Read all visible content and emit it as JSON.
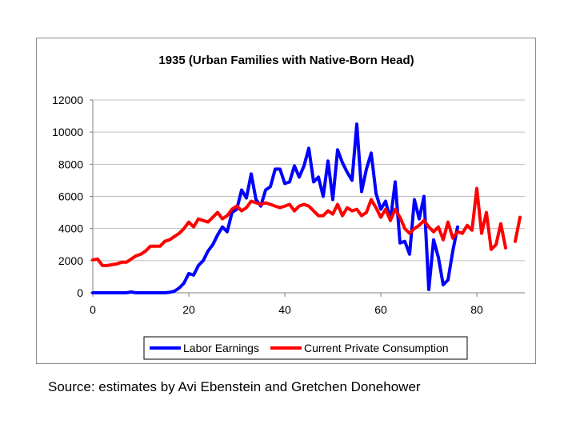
{
  "source_note": "Source: estimates by Avi Ebenstein and Gretchen Donehower",
  "chart_data": {
    "type": "line",
    "title": "1935 (Urban Families with Native-Born Head)",
    "xlabel": "",
    "ylabel": "",
    "xlim": [
      0,
      90
    ],
    "ylim": [
      0,
      12000
    ],
    "xticks": [
      0,
      20,
      40,
      60,
      80
    ],
    "yticks": [
      0,
      2000,
      4000,
      6000,
      8000,
      10000,
      12000
    ],
    "grid": true,
    "legend_position": "bottom",
    "series": [
      {
        "name": "Labor Earnings",
        "color": "#0000ff",
        "x": [
          0,
          1,
          2,
          3,
          4,
          5,
          6,
          7,
          8,
          9,
          10,
          11,
          12,
          13,
          14,
          15,
          16,
          17,
          18,
          19,
          20,
          21,
          22,
          23,
          24,
          25,
          26,
          27,
          28,
          29,
          30,
          31,
          32,
          33,
          34,
          35,
          36,
          37,
          38,
          39,
          40,
          41,
          42,
          43,
          44,
          45,
          46,
          47,
          48,
          49,
          50,
          51,
          52,
          53,
          54,
          55,
          56,
          57,
          58,
          59,
          60,
          61,
          62,
          63,
          64,
          65,
          66,
          67,
          68,
          69,
          70,
          71,
          72,
          73,
          74,
          75,
          76
        ],
        "y": [
          0,
          0,
          0,
          0,
          0,
          0,
          0,
          0,
          50,
          0,
          0,
          0,
          0,
          0,
          0,
          0,
          30,
          100,
          300,
          600,
          1200,
          1100,
          1700,
          2000,
          2600,
          3000,
          3600,
          4100,
          3800,
          5000,
          5200,
          6400,
          5900,
          7400,
          5800,
          5400,
          6400,
          6600,
          7700,
          7700,
          6800,
          6900,
          7900,
          7200,
          7900,
          9000,
          6900,
          7200,
          6000,
          8200,
          5800,
          8900,
          8100,
          7500,
          7000,
          10500,
          6300,
          7700,
          8700,
          6200,
          5200,
          5700,
          4500,
          6900,
          3100,
          3200,
          2400,
          5800,
          4600,
          6000,
          200,
          3300,
          2200,
          500,
          800,
          2600,
          4100
        ]
      },
      {
        "name": "Current Private Consumption",
        "color": "#ff0000",
        "x": [
          0,
          1,
          2,
          3,
          4,
          5,
          6,
          7,
          8,
          9,
          10,
          11,
          12,
          13,
          14,
          15,
          16,
          17,
          18,
          19,
          20,
          21,
          22,
          23,
          24,
          25,
          26,
          27,
          28,
          29,
          30,
          31,
          32,
          33,
          34,
          35,
          36,
          37,
          38,
          39,
          40,
          41,
          42,
          43,
          44,
          45,
          46,
          47,
          48,
          49,
          50,
          51,
          52,
          53,
          54,
          55,
          56,
          57,
          58,
          59,
          60,
          61,
          62,
          63,
          64,
          65,
          66,
          67,
          68,
          69,
          70,
          71,
          72,
          73,
          74,
          75,
          76,
          77,
          78,
          79,
          80,
          81,
          82,
          83,
          84,
          85,
          86,
          87,
          88,
          89
        ],
        "y": [
          2050,
          2100,
          1700,
          1700,
          1750,
          1800,
          1900,
          1900,
          2100,
          2300,
          2400,
          2600,
          2900,
          2900,
          2900,
          3200,
          3300,
          3500,
          3700,
          4000,
          4400,
          4100,
          4600,
          4500,
          4400,
          4700,
          5000,
          4600,
          4800,
          5200,
          5400,
          5100,
          5300,
          5700,
          5600,
          5500,
          5600,
          5500,
          5400,
          5300,
          5400,
          5500,
          5100,
          5400,
          5500,
          5400,
          5100,
          4800,
          4800,
          5100,
          4900,
          5500,
          4800,
          5300,
          5100,
          5200,
          4800,
          5000,
          5800,
          5300,
          4700,
          5200,
          4500,
          5200,
          4700,
          4000,
          3700,
          4000,
          4200,
          4500,
          4100,
          3800,
          4100,
          3300,
          4400,
          3400,
          3800,
          3700,
          4200,
          3900,
          6500,
          3700,
          5000,
          2700,
          3000,
          4300,
          2800,
          null,
          3200,
          4700
        ]
      }
    ]
  }
}
